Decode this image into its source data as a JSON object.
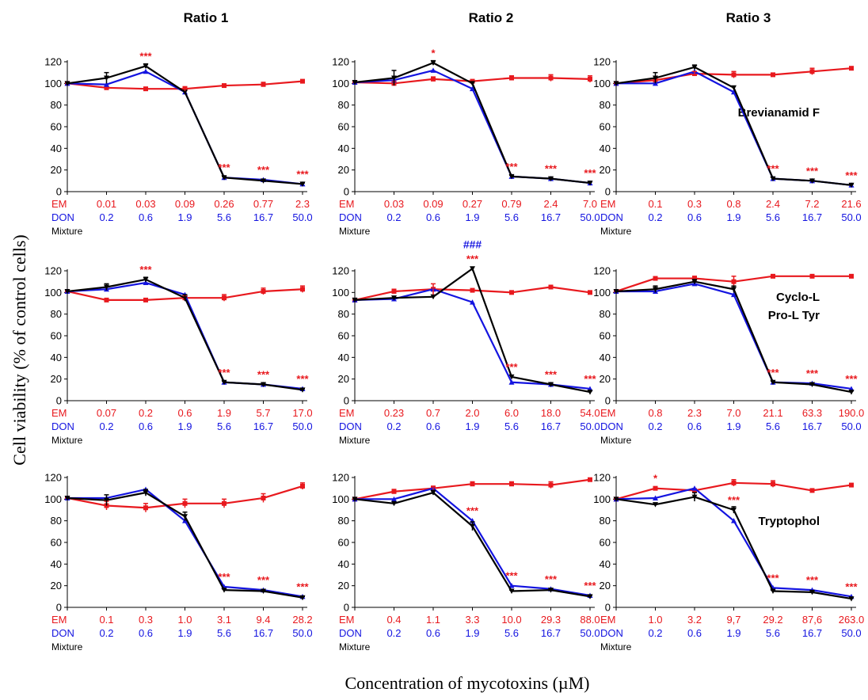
{
  "column_titles": [
    "Ratio 1",
    "Ratio 2",
    "Ratio 3"
  ],
  "row_labels": [
    [
      "Brevianamid F"
    ],
    [
      "Cyclo-L",
      "Pro-L Tyr"
    ],
    [
      "Tryptophol"
    ]
  ],
  "ylabel": "Cell viability (% of control cells)",
  "xlabel": "Concentration of mycotoxins (µM)",
  "row_names": {
    "em": "EM",
    "don": "DON",
    "mix": "Mixture"
  },
  "colors": {
    "em": "#e8191e",
    "don": "#1414e0",
    "mix": "#000000",
    "hash": "#1414e0"
  },
  "don_values": [
    "0.2",
    "0.6",
    "1.9",
    "5.6",
    "16.7",
    "50.0"
  ],
  "chart_data": [
    {
      "type": "line",
      "ylim": [
        0,
        120
      ],
      "yticks": [
        0,
        20,
        40,
        60,
        80,
        100,
        120
      ],
      "em_labels": [
        "0.01",
        "0.03",
        "0.09",
        "0.26",
        "0.77",
        "2.3"
      ],
      "series": [
        {
          "key": "em",
          "values": [
            100,
            96,
            95,
            95,
            98,
            99,
            102
          ]
        },
        {
          "key": "don",
          "values": [
            100,
            99,
            111,
            92,
            13,
            11,
            7
          ]
        },
        {
          "key": "mix",
          "values": [
            100,
            105,
            116,
            92,
            13,
            10,
            7
          ]
        }
      ],
      "errors": {
        "mix": [
          0,
          5,
          2,
          0,
          1,
          1,
          1
        ],
        "em": [
          0,
          0,
          0,
          2,
          1,
          2,
          0
        ]
      },
      "sig": [
        {
          "x": 2,
          "y": 116,
          "text": "***"
        },
        {
          "x": 4,
          "y": 13,
          "text": "***"
        },
        {
          "x": 5,
          "y": 11,
          "text": "***"
        },
        {
          "x": 6,
          "y": 7,
          "text": "***"
        }
      ],
      "hash": null
    },
    {
      "type": "line",
      "ylim": [
        0,
        120
      ],
      "yticks": [
        0,
        20,
        40,
        60,
        80,
        100,
        120
      ],
      "em_labels": [
        "0.03",
        "0.09",
        "0.27",
        "0.79",
        "2.4",
        "7.0"
      ],
      "series": [
        {
          "key": "em",
          "values": [
            101,
            100,
            104,
            102,
            105,
            105,
            104
          ]
        },
        {
          "key": "don",
          "values": [
            101,
            103,
            112,
            95,
            14,
            12,
            8
          ]
        },
        {
          "key": "mix",
          "values": [
            101,
            105,
            119,
            100,
            14,
            12,
            8
          ]
        }
      ],
      "errors": {
        "mix": [
          0,
          7,
          2,
          0,
          1,
          1,
          1
        ],
        "em": [
          0,
          2,
          2,
          0,
          2,
          3,
          3
        ]
      },
      "sig": [
        {
          "x": 2,
          "y": 119,
          "text": "*"
        },
        {
          "x": 4,
          "y": 14,
          "text": "***"
        },
        {
          "x": 5,
          "y": 12,
          "text": "***"
        },
        {
          "x": 6,
          "y": 8,
          "text": "***"
        }
      ],
      "hash": null
    },
    {
      "type": "line",
      "ylim": [
        0,
        120
      ],
      "yticks": [
        0,
        20,
        40,
        60,
        80,
        100,
        120
      ],
      "em_labels": [
        "0.1",
        "0.3",
        "0.8",
        "2.4",
        "7.2",
        "21.6"
      ],
      "series": [
        {
          "key": "em",
          "values": [
            100,
            103,
            109,
            108,
            108,
            111,
            114
          ]
        },
        {
          "key": "don",
          "values": [
            100,
            100,
            111,
            92,
            12,
            10,
            6
          ]
        },
        {
          "key": "mix",
          "values": [
            100,
            105,
            115,
            96,
            12,
            10,
            6
          ]
        }
      ],
      "errors": {
        "mix": [
          0,
          5,
          2,
          0,
          1,
          1,
          1
        ],
        "em": [
          0,
          0,
          2,
          3,
          0,
          3,
          0
        ]
      },
      "sig": [
        {
          "x": 4,
          "y": 12,
          "text": "***"
        },
        {
          "x": 5,
          "y": 10,
          "text": "***"
        },
        {
          "x": 6,
          "y": 6,
          "text": "***"
        }
      ],
      "hash": null
    },
    {
      "type": "line",
      "ylim": [
        0,
        120
      ],
      "yticks": [
        0,
        20,
        40,
        60,
        80,
        100,
        120
      ],
      "em_labels": [
        "0.07",
        "0.2",
        "0.6",
        "1.9",
        "5.7",
        "17.0"
      ],
      "series": [
        {
          "key": "em",
          "values": [
            101,
            93,
            93,
            95,
            95,
            101,
            103
          ]
        },
        {
          "key": "don",
          "values": [
            101,
            103,
            109,
            98,
            17,
            15,
            11
          ]
        },
        {
          "key": "mix",
          "values": [
            101,
            105,
            112,
            95,
            17,
            15,
            10
          ]
        }
      ],
      "errors": {
        "mix": [
          0,
          3,
          2,
          3,
          1,
          1,
          1
        ],
        "em": [
          0,
          0,
          0,
          2,
          3,
          3,
          3
        ]
      },
      "sig": [
        {
          "x": 2,
          "y": 112,
          "text": "***"
        },
        {
          "x": 4,
          "y": 17,
          "text": "***"
        },
        {
          "x": 5,
          "y": 15,
          "text": "***"
        },
        {
          "x": 6,
          "y": 11,
          "text": "***"
        }
      ],
      "hash": null
    },
    {
      "type": "line",
      "ylim": [
        0,
        120
      ],
      "yticks": [
        0,
        20,
        40,
        60,
        80,
        100,
        120
      ],
      "em_labels": [
        "0.23",
        "0.7",
        "2.0",
        "6.0",
        "18.0",
        "54.0"
      ],
      "series": [
        {
          "key": "em",
          "values": [
            93,
            101,
            103,
            102,
            100,
            105,
            100
          ]
        },
        {
          "key": "don",
          "values": [
            93,
            94,
            103,
            91,
            17,
            15,
            11
          ]
        },
        {
          "key": "mix",
          "values": [
            93,
            95,
            96,
            122,
            22,
            15,
            8
          ]
        }
      ],
      "errors": {
        "mix": [
          0,
          0,
          0,
          0,
          0,
          1,
          1
        ],
        "em": [
          0,
          2,
          5,
          0,
          0,
          0,
          0
        ]
      },
      "sig": [
        {
          "x": 3,
          "y": 122,
          "text": "***"
        },
        {
          "x": 4,
          "y": 22,
          "text": "***"
        },
        {
          "x": 5,
          "y": 15,
          "text": "***"
        },
        {
          "x": 6,
          "y": 11,
          "text": "***"
        }
      ],
      "hash": {
        "x": 3,
        "y": 122,
        "text": "###"
      }
    },
    {
      "type": "line",
      "ylim": [
        0,
        120
      ],
      "yticks": [
        0,
        20,
        40,
        60,
        80,
        100,
        120
      ],
      "em_labels": [
        "0.8",
        "2.3",
        "7.0",
        "21.1",
        "63.3",
        "190.0"
      ],
      "series": [
        {
          "key": "em",
          "values": [
            101,
            113,
            113,
            110,
            115,
            115,
            115
          ]
        },
        {
          "key": "don",
          "values": [
            101,
            101,
            108,
            98,
            17,
            16,
            11
          ]
        },
        {
          "key": "mix",
          "values": [
            101,
            103,
            110,
            103,
            17,
            15,
            8
          ]
        }
      ],
      "errors": {
        "mix": [
          0,
          3,
          2,
          3,
          1,
          1,
          1
        ],
        "em": [
          0,
          0,
          2,
          5,
          0,
          0,
          0
        ]
      },
      "sig": [
        {
          "x": 4,
          "y": 17,
          "text": "***"
        },
        {
          "x": 5,
          "y": 16,
          "text": "***"
        },
        {
          "x": 6,
          "y": 11,
          "text": "***"
        }
      ],
      "hash": null
    },
    {
      "type": "line",
      "ylim": [
        0,
        120
      ],
      "yticks": [
        0,
        20,
        40,
        60,
        80,
        100,
        120
      ],
      "em_labels": [
        "0.1",
        "0.3",
        "1.0",
        "3.1",
        "9.4",
        "28.2"
      ],
      "series": [
        {
          "key": "em",
          "values": [
            101,
            94,
            92,
            96,
            96,
            101,
            112
          ]
        },
        {
          "key": "don",
          "values": [
            101,
            101,
            109,
            80,
            19,
            16,
            10
          ]
        },
        {
          "key": "mix",
          "values": [
            101,
            99,
            106,
            84,
            16,
            15,
            9
          ]
        }
      ],
      "errors": {
        "mix": [
          0,
          5,
          3,
          4,
          1,
          1,
          1
        ],
        "em": [
          0,
          4,
          4,
          4,
          4,
          4,
          3
        ]
      },
      "sig": [
        {
          "x": 4,
          "y": 19,
          "text": "***"
        },
        {
          "x": 5,
          "y": 16,
          "text": "***"
        },
        {
          "x": 6,
          "y": 10,
          "text": "***"
        }
      ],
      "hash": null
    },
    {
      "type": "line",
      "ylim": [
        0,
        120
      ],
      "yticks": [
        0,
        20,
        40,
        60,
        80,
        100,
        120
      ],
      "em_labels": [
        "0.4",
        "1.1",
        "3.3",
        "10.0",
        "29.3",
        "88.0"
      ],
      "series": [
        {
          "key": "em",
          "values": [
            100,
            107,
            110,
            114,
            114,
            113,
            118
          ]
        },
        {
          "key": "don",
          "values": [
            100,
            100,
            110,
            80,
            20,
            17,
            11
          ]
        },
        {
          "key": "mix",
          "values": [
            100,
            96,
            106,
            75,
            15,
            16,
            10
          ]
        }
      ],
      "errors": {
        "mix": [
          0,
          0,
          2,
          4,
          1,
          1,
          1
        ],
        "em": [
          0,
          2,
          2,
          2,
          2,
          3,
          0
        ]
      },
      "sig": [
        {
          "x": 3,
          "y": 80,
          "text": "***"
        },
        {
          "x": 4,
          "y": 20,
          "text": "***"
        },
        {
          "x": 5,
          "y": 17,
          "text": "***"
        },
        {
          "x": 6,
          "y": 11,
          "text": "***"
        }
      ],
      "hash": null
    },
    {
      "type": "line",
      "ylim": [
        0,
        120
      ],
      "yticks": [
        0,
        20,
        40,
        60,
        80,
        100,
        120
      ],
      "em_labels": [
        "1.0",
        "3.2",
        "9,7",
        "29.2",
        "87,6",
        "263.0"
      ],
      "series": [
        {
          "key": "em",
          "values": [
            100,
            110,
            108,
            115,
            114,
            108,
            113
          ]
        },
        {
          "key": "don",
          "values": [
            100,
            101,
            110,
            80,
            18,
            16,
            10
          ]
        },
        {
          "key": "mix",
          "values": [
            100,
            95,
            102,
            90,
            15,
            14,
            8
          ]
        }
      ],
      "errors": {
        "mix": [
          0,
          0,
          4,
          3,
          1,
          1,
          1
        ],
        "em": [
          0,
          0,
          0,
          3,
          3,
          0,
          0
        ]
      },
      "sig": [
        {
          "x": 1,
          "y": 110,
          "text": "*"
        },
        {
          "x": 3,
          "y": 90,
          "text": "***"
        },
        {
          "x": 4,
          "y": 18,
          "text": "***"
        },
        {
          "x": 5,
          "y": 16,
          "text": "***"
        },
        {
          "x": 6,
          "y": 10,
          "text": "***"
        }
      ],
      "hash": null
    }
  ]
}
